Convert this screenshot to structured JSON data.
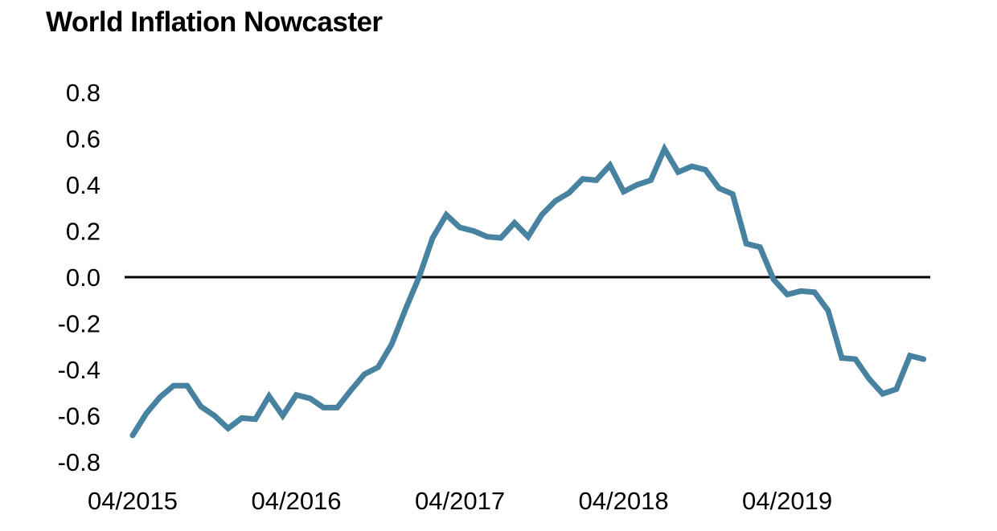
{
  "chart_data": {
    "type": "line",
    "title": "World Inflation Nowcaster",
    "xlabel": "",
    "ylabel": "",
    "ylim": [
      -0.8,
      0.8
    ],
    "yticks": [
      "0.8",
      "0.6",
      "0.4",
      "0.2",
      "0.0",
      "-0.2",
      "-0.4",
      "-0.6",
      "-0.8"
    ],
    "ytick_values": [
      0.8,
      0.6,
      0.4,
      0.2,
      0.0,
      -0.2,
      -0.4,
      -0.6,
      -0.8
    ],
    "xtick_labels": [
      "04/2015",
      "04/2016",
      "04/2017",
      "04/2018",
      "04/2019"
    ],
    "xtick_index": [
      0,
      12,
      24,
      36,
      48
    ],
    "grid": false,
    "reference_line": 0.0,
    "colors": {
      "series": "#4783a0",
      "zero_line": "#000000"
    },
    "series": [
      {
        "name": "World Inflation Nowcaster",
        "start": "04/2015",
        "frequency": "monthly",
        "values": [
          -0.685,
          -0.59,
          -0.52,
          -0.47,
          -0.47,
          -0.56,
          -0.6,
          -0.655,
          -0.61,
          -0.615,
          -0.515,
          -0.6,
          -0.51,
          -0.525,
          -0.565,
          -0.565,
          -0.49,
          -0.42,
          -0.39,
          -0.29,
          -0.14,
          0.0,
          0.17,
          0.27,
          0.215,
          0.2,
          0.175,
          0.17,
          0.235,
          0.175,
          0.27,
          0.33,
          0.365,
          0.425,
          0.42,
          0.485,
          0.37,
          0.4,
          0.42,
          0.555,
          0.455,
          0.48,
          0.465,
          0.385,
          0.36,
          0.145,
          0.13,
          -0.01,
          -0.075,
          -0.06,
          -0.065,
          -0.145,
          -0.35,
          -0.355,
          -0.44,
          -0.505,
          -0.485,
          -0.34,
          -0.355
        ]
      }
    ]
  }
}
